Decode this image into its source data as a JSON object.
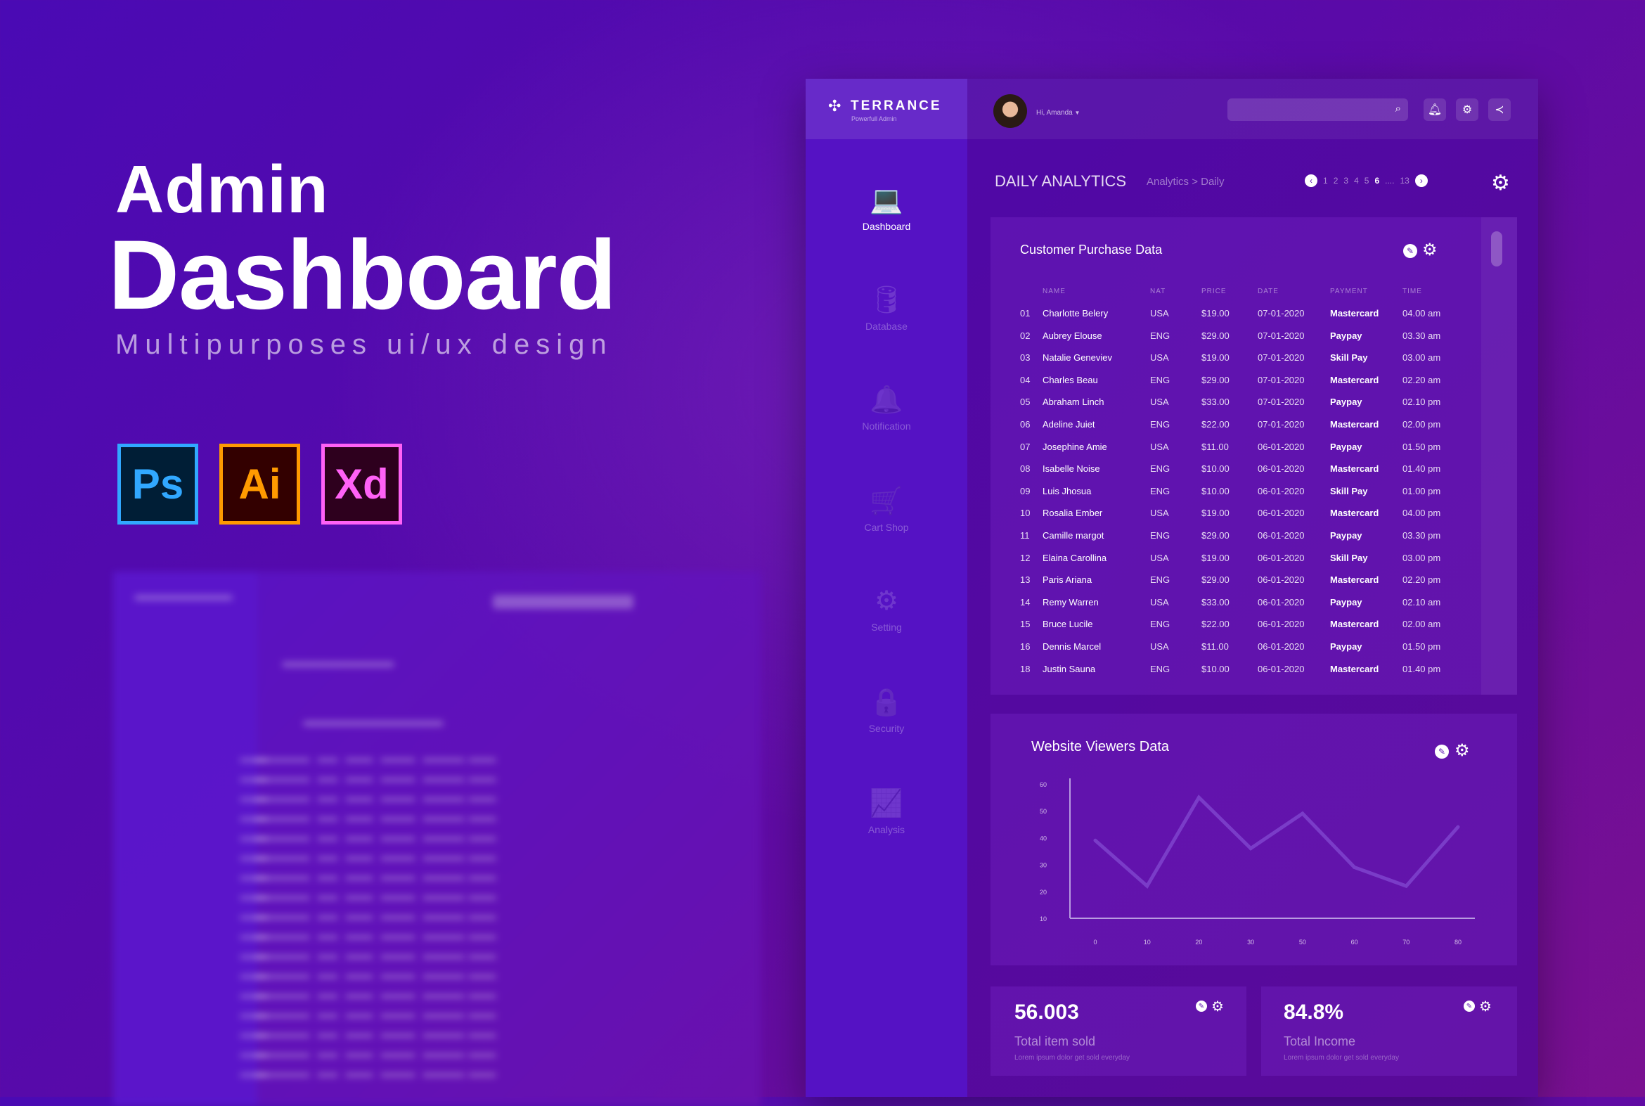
{
  "hero": {
    "title1": "Admin",
    "title2": "Dashboard",
    "subtitle": "Multipurposes ui/ux design",
    "apps": [
      {
        "label": "Ps",
        "color": "#31a8ff",
        "bg": "#001e36"
      },
      {
        "label": "Ai",
        "color": "#ff9a00",
        "bg": "#330000"
      },
      {
        "label": "Xd",
        "color": "#ff61f6",
        "bg": "#2e001e"
      }
    ]
  },
  "brand": {
    "name": "TERRANCE",
    "tagline": "Powerfull Admin"
  },
  "user": {
    "greeting": "Hi, Amanda"
  },
  "search": {
    "placeholder": ""
  },
  "sidebar": {
    "items": [
      {
        "label": "Dashboard",
        "icon": "laptop-icon",
        "glyph": "💻"
      },
      {
        "label": "Database",
        "icon": "database-icon",
        "glyph": "🛢"
      },
      {
        "label": "Notification",
        "icon": "bell-icon",
        "glyph": "🔔"
      },
      {
        "label": "Cart Shop",
        "icon": "cart-icon",
        "glyph": "🛒"
      },
      {
        "label": "Setting",
        "icon": "gear-icon",
        "glyph": "⚙"
      },
      {
        "label": "Security",
        "icon": "lock-icon",
        "glyph": "🔒"
      },
      {
        "label": "Analysis",
        "icon": "chart-icon",
        "glyph": "📈"
      }
    ]
  },
  "page": {
    "title": "DAILY ANALYTICS",
    "breadcrumb": "Analytics > Daily",
    "pages": [
      "1",
      "2",
      "3",
      "4",
      "5",
      "6",
      "....",
      "13"
    ],
    "current_page": "6"
  },
  "purchase": {
    "title": "Customer Purchase Data",
    "columns": [
      "NAME",
      "NAT",
      "PRICE",
      "DATE",
      "PAYMENT",
      "TIME"
    ],
    "rows": [
      [
        "01",
        "Charlotte Belery",
        "USA",
        "$19.00",
        "07-01-2020",
        "Mastercard",
        "04.00 am"
      ],
      [
        "02",
        "Aubrey Elouse",
        "ENG",
        "$29.00",
        "07-01-2020",
        "Paypay",
        "03.30 am"
      ],
      [
        "03",
        "Natalie Geneviev",
        "USA",
        "$19.00",
        "07-01-2020",
        "Skill Pay",
        "03.00 am"
      ],
      [
        "04",
        "Charles Beau",
        "ENG",
        "$29.00",
        "07-01-2020",
        "Mastercard",
        "02.20 am"
      ],
      [
        "05",
        "Abraham Linch",
        "USA",
        "$33.00",
        "07-01-2020",
        "Paypay",
        "02.10 pm"
      ],
      [
        "06",
        "Adeline Juiet",
        "ENG",
        "$22.00",
        "07-01-2020",
        "Mastercard",
        "02.00 pm"
      ],
      [
        "07",
        "Josephine Amie",
        "USA",
        "$11.00",
        "06-01-2020",
        "Paypay",
        "01.50 pm"
      ],
      [
        "08",
        "Isabelle Noise",
        "ENG",
        "$10.00",
        "06-01-2020",
        "Mastercard",
        "01.40 pm"
      ],
      [
        "09",
        "Luis Jhosua",
        "ENG",
        "$10.00",
        "06-01-2020",
        "Skill Pay",
        "01.00 pm"
      ],
      [
        "10",
        "Rosalia Ember",
        "USA",
        "$19.00",
        "06-01-2020",
        "Mastercard",
        "04.00 pm"
      ],
      [
        "11",
        "Camille margot",
        "ENG",
        "$29.00",
        "06-01-2020",
        "Paypay",
        "03.30 pm"
      ],
      [
        "12",
        "Elaina Carollina",
        "USA",
        "$19.00",
        "06-01-2020",
        "Skill Pay",
        "03.00 pm"
      ],
      [
        "13",
        "Paris Ariana",
        "ENG",
        "$29.00",
        "06-01-2020",
        "Mastercard",
        "02.20 pm"
      ],
      [
        "14",
        "Remy Warren",
        "USA",
        "$33.00",
        "06-01-2020",
        "Paypay",
        "02.10 am"
      ],
      [
        "15",
        "Bruce Lucile",
        "ENG",
        "$22.00",
        "06-01-2020",
        "Mastercard",
        "02.00 am"
      ],
      [
        "16",
        "Dennis Marcel",
        "USA",
        "$11.00",
        "06-01-2020",
        "Paypay",
        "01.50 pm"
      ],
      [
        "18",
        "Justin Sauna",
        "ENG",
        "$10.00",
        "06-01-2020",
        "Mastercard",
        "01.40 pm"
      ]
    ]
  },
  "viewers": {
    "title": "Website Viewers Data"
  },
  "chart_data": {
    "type": "line",
    "title": "Website Viewers Data",
    "x": [
      "0",
      "10",
      "20",
      "30",
      "50",
      "60",
      "70",
      "80"
    ],
    "values": [
      39,
      22,
      55,
      36,
      49,
      29,
      22,
      44
    ],
    "yticks": [
      "60",
      "50",
      "40",
      "30",
      "20",
      "10"
    ],
    "ylim": [
      10,
      60
    ],
    "grid": false,
    "line_color": "#7a3cc8"
  },
  "stats": [
    {
      "value": "56.003",
      "label": "Total item sold",
      "desc": "Lorem ipsum dolor get sold everyday"
    },
    {
      "value": "84.8%",
      "label": "Total Income",
      "desc": "Lorem ipsum dolor get sold everyday"
    }
  ]
}
